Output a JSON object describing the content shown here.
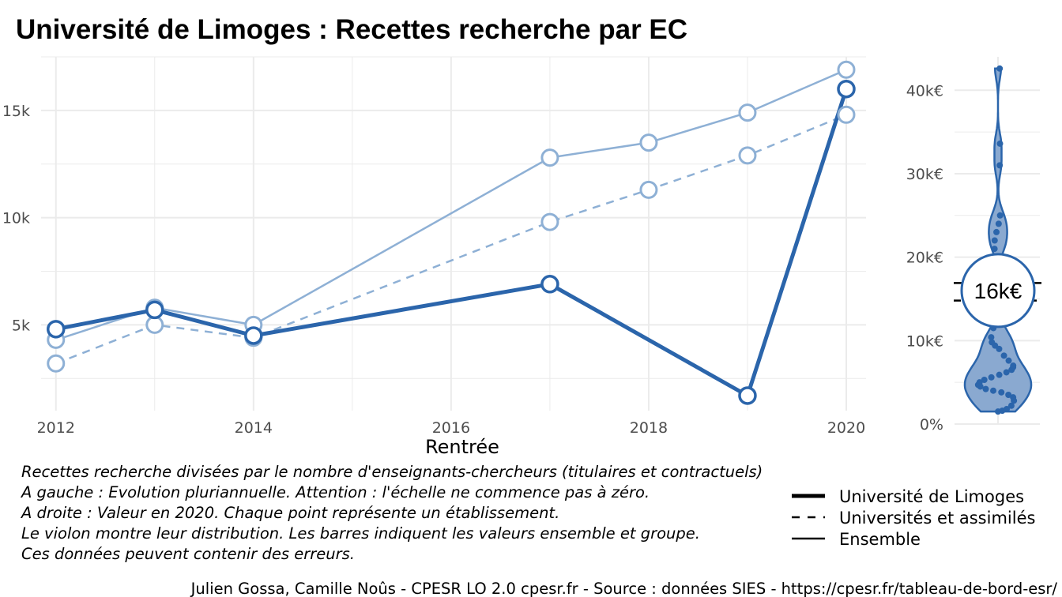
{
  "title": "Université de Limoges  :  Recettes recherche par EC",
  "colors": {
    "primary": "#2b65ab",
    "light": "#8eb0d5",
    "grid": "#ebebeb",
    "violin_fill": "#8aa9d0"
  },
  "chart_data": [
    {
      "type": "line",
      "xlabel": "Rentrée",
      "ylabel": "",
      "xlim": [
        2011.85,
        2020.2
      ],
      "ylim": [
        1000,
        17500
      ],
      "x_ticks": [
        {
          "value": 2012,
          "label": "2012"
        },
        {
          "value": 2014,
          "label": "2014"
        },
        {
          "value": 2016,
          "label": "2016"
        },
        {
          "value": 2018,
          "label": "2018"
        },
        {
          "value": 2020,
          "label": "2020"
        }
      ],
      "y_ticks": [
        {
          "value": 5000,
          "label": "5k"
        },
        {
          "value": 10000,
          "label": "10k"
        },
        {
          "value": 15000,
          "label": "15k"
        }
      ],
      "grid": true,
      "series": [
        {
          "name": "Université de Limoges",
          "style": "thick",
          "x": [
            2012,
            2013,
            2014,
            2017,
            2019,
            2020
          ],
          "y": [
            4800,
            5700,
            4500,
            6900,
            1700,
            16000
          ]
        },
        {
          "name": "Universités et assimilés",
          "style": "dashed",
          "x": [
            2012,
            2013,
            2014,
            2017,
            2018,
            2019,
            2020
          ],
          "y": [
            3200,
            5000,
            4400,
            9800,
            11300,
            12900,
            14800
          ]
        },
        {
          "name": "Ensemble",
          "style": "thin",
          "x": [
            2012,
            2013,
            2014,
            2017,
            2018,
            2019,
            2020
          ],
          "y": [
            4300,
            5800,
            5000,
            12800,
            13500,
            14900,
            16900
          ]
        }
      ]
    },
    {
      "type": "violin",
      "ylim": [
        0,
        44000
      ],
      "y_ticks": [
        {
          "value": 0,
          "label": "0%"
        },
        {
          "value": 10000,
          "label": "10k€"
        },
        {
          "value": 20000,
          "label": "20k€"
        },
        {
          "value": 30000,
          "label": "30k€"
        },
        {
          "value": 40000,
          "label": "40k€"
        }
      ],
      "points": [
        1500,
        1600,
        1800,
        2200,
        2800,
        3200,
        3500,
        3800,
        4000,
        4200,
        4500,
        4700,
        5000,
        5300,
        5600,
        5900,
        6200,
        6500,
        6800,
        7000,
        7600,
        8200,
        9000,
        9400,
        9800,
        10400,
        11500,
        21000,
        22000,
        23000,
        24000,
        25000,
        31000,
        33600,
        42600
      ],
      "reference_lines": [
        {
          "name": "Ensemble",
          "value": 16900
        },
        {
          "name": "Universités et assimilés",
          "value": 14800
        }
      ],
      "highlight": {
        "value": 16000,
        "label": "16k€"
      }
    }
  ],
  "caption_lines": [
    "Recettes recherche divisées par le nombre d'enseignants-chercheurs (titulaires et contractuels)",
    "A gauche : Evolution pluriannuelle. Attention : l'échelle ne commence pas à zéro.",
    "A droite : Valeur en 2020. Chaque point représente un établissement.",
    "Le violon montre leur distribution. Les barres indiquent les valeurs ensemble et groupe.",
    "Ces données peuvent contenir des erreurs."
  ],
  "legend": [
    {
      "label": "Université de Limoges",
      "style": "thick"
    },
    {
      "label": "Universités et assimilés",
      "style": "dashed"
    },
    {
      "label": "Ensemble",
      "style": "thin"
    }
  ],
  "source": "Julien Gossa, Camille Noûs - CPESR LO 2.0 cpesr.fr - Source : données SIES - https://cpesr.fr/tableau-de-bord-esr/"
}
